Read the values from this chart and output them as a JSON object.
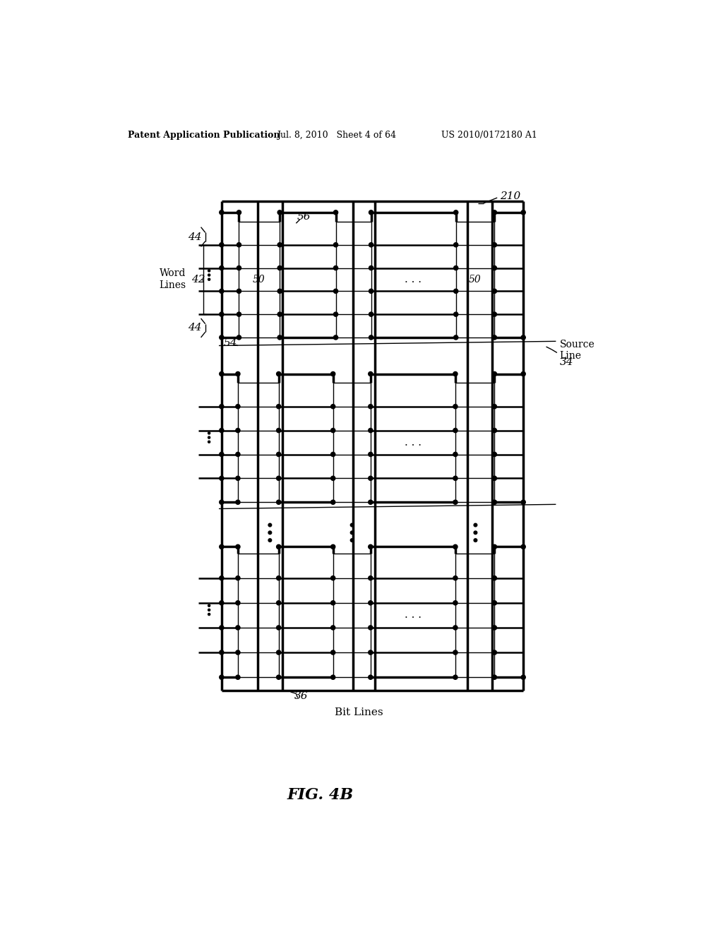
{
  "title": "FIG. 4B",
  "header_left": "Patent Application Publication",
  "header_mid": "Jul. 8, 2010   Sheet 4 of 64",
  "header_right": "US 2010/0172180 A1",
  "bg_color": "#ffffff",
  "line_color": "#000000",
  "label_210": "210",
  "label_56": "56",
  "label_44_top": "44",
  "label_44_bot": "44",
  "label_42": "42",
  "label_50_left": "50",
  "label_50_right": "50",
  "label_54": "54",
  "label_34": "34",
  "label_36": "36",
  "label_word_lines": "Word\nLines",
  "label_source_line": "Source\nLine",
  "label_bit_lines": "Bit Lines"
}
